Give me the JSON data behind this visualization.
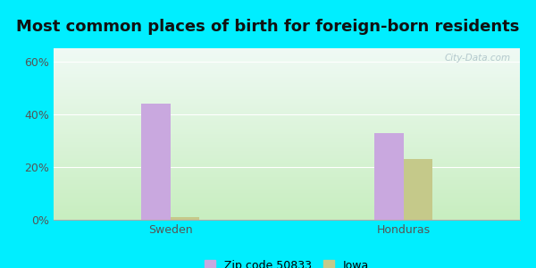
{
  "title": "Most common places of birth for foreign-born residents",
  "categories": [
    "Sweden",
    "Honduras"
  ],
  "zip_values": [
    44.0,
    33.0
  ],
  "iowa_values": [
    1.0,
    23.0
  ],
  "zip_color": "#c9a8df",
  "iowa_color": "#c5c98a",
  "zip_label": "Zip code 50833",
  "iowa_label": "Iowa",
  "yticks": [
    0,
    20,
    40,
    60
  ],
  "ylim": [
    0,
    65
  ],
  "background_outer": "#00eeff",
  "title_fontsize": 13,
  "tick_fontsize": 9,
  "legend_fontsize": 9,
  "bar_width": 0.25,
  "watermark": "City-Data.com",
  "gradient_bottom": "#c8eec0",
  "gradient_top": "#f0faf5"
}
